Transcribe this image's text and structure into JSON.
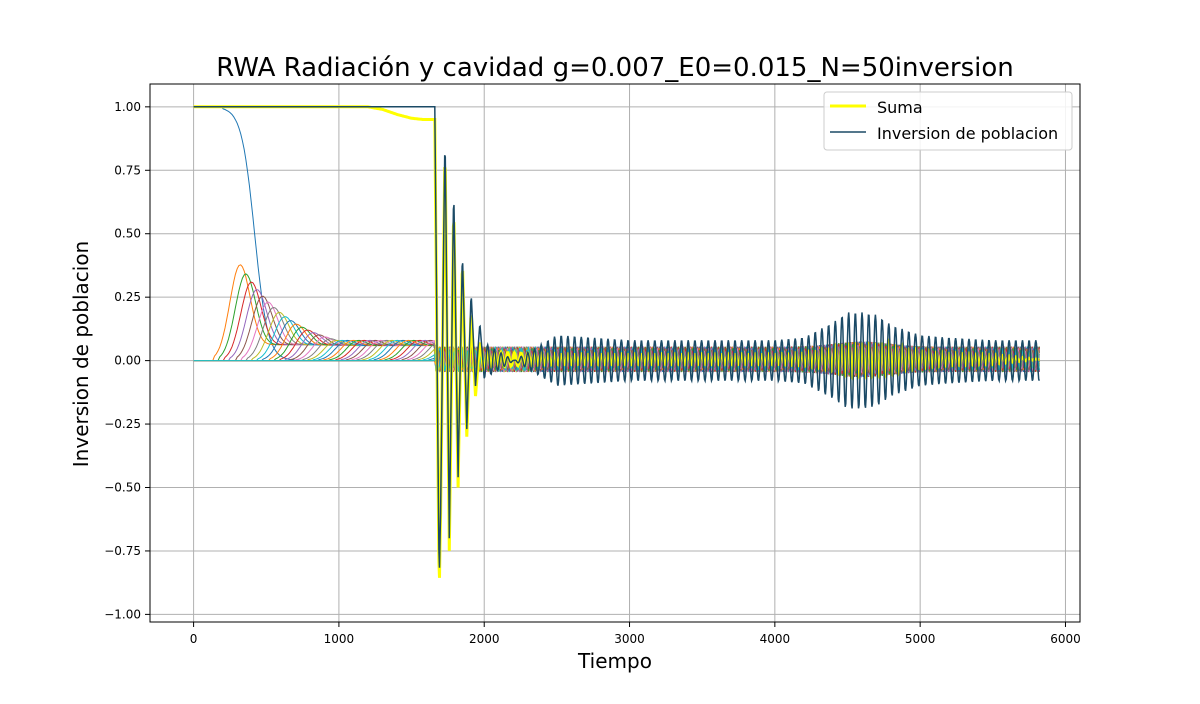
{
  "chart_data": {
    "type": "line",
    "title": "RWA Radiación y cavidad g=0.007_E0=0.015_N=50inversion",
    "xlabel": "Tiempo",
    "ylabel": "Inversion de poblacion",
    "xlim": [
      -300,
      6100
    ],
    "ylim": [
      -1.03,
      1.09
    ],
    "grid": true,
    "legend_position": "top-right",
    "x_ticks": [
      0,
      1000,
      2000,
      3000,
      4000,
      5000,
      6000
    ],
    "x_tick_labels": [
      "0",
      "1000",
      "2000",
      "3000",
      "4000",
      "5000",
      "6000"
    ],
    "y_ticks": [
      1.0,
      0.75,
      0.5,
      0.25,
      0.0,
      -0.25,
      -0.5,
      -0.75,
      -1.0
    ],
    "y_tick_labels": [
      "1.00",
      "0.75",
      "0.50",
      "0.25",
      "0.00",
      "−0.25",
      "−0.50",
      "−0.75",
      "−1.00"
    ],
    "series": [
      {
        "name": "Suma",
        "color": "#ffff00",
        "x": [
          0,
          1200,
          1300,
          1400,
          1500,
          1580,
          1660,
          1690,
          1700,
          1730,
          1760,
          1790,
          1820,
          1850,
          1880,
          1910,
          1940,
          1970,
          2000,
          2500,
          3000,
          3500,
          4000,
          4200,
          4400,
          4500,
          4600,
          4700,
          4800,
          4900,
          5000,
          5200,
          5500,
          5820
        ],
        "values": [
          1.0,
          1.0,
          0.99,
          0.97,
          0.955,
          0.95,
          0.95,
          -0.92,
          -0.6,
          0.86,
          -0.75,
          0.62,
          -0.5,
          0.4,
          -0.3,
          0.2,
          -0.14,
          0.08,
          -0.06,
          -0.04,
          -0.04,
          -0.04,
          -0.04,
          -0.05,
          -0.09,
          -0.13,
          -0.13,
          -0.13,
          -0.12,
          -0.09,
          -0.07,
          -0.05,
          -0.04,
          0.0
        ]
      },
      {
        "name": "Inversion de poblacion",
        "color": "#1b4a66",
        "x": [
          0,
          1660,
          1690,
          1700,
          1730,
          1760,
          1790,
          1820,
          1850,
          1880,
          1910,
          1940,
          1970,
          2000,
          2500,
          3000,
          3500,
          4000,
          4200,
          4400,
          4500,
          4600,
          4700,
          4800,
          4900,
          5000,
          5200,
          5500,
          5820
        ],
        "values": [
          1.0,
          1.0,
          -0.87,
          -0.6,
          0.91,
          -0.7,
          0.69,
          -0.46,
          0.43,
          -0.27,
          0.27,
          -0.1,
          0.15,
          -0.07,
          0.1,
          0.08,
          0.08,
          0.08,
          0.09,
          0.15,
          0.19,
          0.19,
          0.18,
          0.14,
          0.12,
          0.1,
          0.09,
          0.08,
          0.08
        ]
      }
    ]
  }
}
